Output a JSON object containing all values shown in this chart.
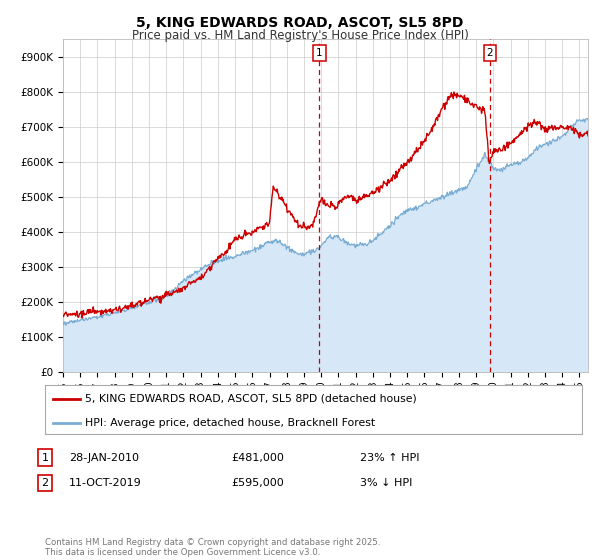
{
  "title": "5, KING EDWARDS ROAD, ASCOT, SL5 8PD",
  "subtitle": "Price paid vs. HM Land Registry's House Price Index (HPI)",
  "ylabel_ticks": [
    "£0",
    "£100K",
    "£200K",
    "£300K",
    "£400K",
    "£500K",
    "£600K",
    "£700K",
    "£800K",
    "£900K"
  ],
  "ytick_values": [
    0,
    100000,
    200000,
    300000,
    400000,
    500000,
    600000,
    700000,
    800000,
    900000
  ],
  "ylim": [
    0,
    950000
  ],
  "xlim_start": 1995.0,
  "xlim_end": 2025.5,
  "line1_color": "#cc0000",
  "line2_color": "#7aadd4",
  "fill_color": "#d6e8f7",
  "vline_color": "#cc0000",
  "marker1_x": 2009.9,
  "marker1_label": "1",
  "marker2_x": 2019.8,
  "marker2_label": "2",
  "legend_line1": "5, KING EDWARDS ROAD, ASCOT, SL5 8PD (detached house)",
  "legend_line2": "HPI: Average price, detached house, Bracknell Forest",
  "table_row1": [
    "1",
    "28-JAN-2010",
    "£481,000",
    "23% ↑ HPI"
  ],
  "table_row2": [
    "2",
    "11-OCT-2019",
    "£595,000",
    "3% ↓ HPI"
  ],
  "footer": "Contains HM Land Registry data © Crown copyright and database right 2025.\nThis data is licensed under the Open Government Licence v3.0.",
  "bg_color": "#ffffff",
  "plot_bg_color": "#ffffff",
  "grid_color": "#cccccc",
  "xtick_years": [
    1995,
    1996,
    1997,
    1998,
    1999,
    2000,
    2001,
    2002,
    2003,
    2004,
    2005,
    2006,
    2007,
    2008,
    2009,
    2010,
    2011,
    2012,
    2013,
    2014,
    2015,
    2016,
    2017,
    2018,
    2019,
    2020,
    2021,
    2022,
    2023,
    2024,
    2025
  ],
  "hpi_key": [
    [
      1995.0,
      140000
    ],
    [
      1996.0,
      148000
    ],
    [
      1997.0,
      158000
    ],
    [
      1998.0,
      170000
    ],
    [
      1999.0,
      185000
    ],
    [
      2000.0,
      200000
    ],
    [
      2001.0,
      218000
    ],
    [
      2002.0,
      260000
    ],
    [
      2003.0,
      295000
    ],
    [
      2004.0,
      320000
    ],
    [
      2005.0,
      330000
    ],
    [
      2006.0,
      348000
    ],
    [
      2007.0,
      370000
    ],
    [
      2007.5,
      375000
    ],
    [
      2008.0,
      358000
    ],
    [
      2008.5,
      340000
    ],
    [
      2009.0,
      335000
    ],
    [
      2009.5,
      345000
    ],
    [
      2010.0,
      360000
    ],
    [
      2010.5,
      390000
    ],
    [
      2011.0,
      385000
    ],
    [
      2011.5,
      370000
    ],
    [
      2012.0,
      360000
    ],
    [
      2012.5,
      365000
    ],
    [
      2013.0,
      375000
    ],
    [
      2013.5,
      395000
    ],
    [
      2014.0,
      420000
    ],
    [
      2014.5,
      445000
    ],
    [
      2015.0,
      460000
    ],
    [
      2015.5,
      470000
    ],
    [
      2016.0,
      480000
    ],
    [
      2016.5,
      490000
    ],
    [
      2017.0,
      500000
    ],
    [
      2017.5,
      510000
    ],
    [
      2018.0,
      520000
    ],
    [
      2018.5,
      530000
    ],
    [
      2019.0,
      580000
    ],
    [
      2019.5,
      620000
    ],
    [
      2019.8,
      600000
    ],
    [
      2020.0,
      580000
    ],
    [
      2020.5,
      580000
    ],
    [
      2021.0,
      590000
    ],
    [
      2021.5,
      600000
    ],
    [
      2022.0,
      610000
    ],
    [
      2022.5,
      640000
    ],
    [
      2023.0,
      650000
    ],
    [
      2023.5,
      660000
    ],
    [
      2024.0,
      670000
    ],
    [
      2024.5,
      700000
    ],
    [
      2025.0,
      720000
    ],
    [
      2025.5,
      720000
    ]
  ],
  "pp_key": [
    [
      1995.0,
      165000
    ],
    [
      1996.0,
      168000
    ],
    [
      1997.0,
      172000
    ],
    [
      1998.0,
      180000
    ],
    [
      1999.0,
      190000
    ],
    [
      2000.0,
      205000
    ],
    [
      2001.0,
      220000
    ],
    [
      2002.0,
      240000
    ],
    [
      2003.0,
      270000
    ],
    [
      2004.0,
      325000
    ],
    [
      2004.5,
      345000
    ],
    [
      2005.0,
      380000
    ],
    [
      2005.5,
      390000
    ],
    [
      2006.0,
      400000
    ],
    [
      2006.5,
      410000
    ],
    [
      2007.0,
      425000
    ],
    [
      2007.2,
      530000
    ],
    [
      2007.5,
      510000
    ],
    [
      2008.0,
      470000
    ],
    [
      2008.5,
      430000
    ],
    [
      2009.0,
      415000
    ],
    [
      2009.5,
      420000
    ],
    [
      2009.9,
      481000
    ],
    [
      2010.0,
      490000
    ],
    [
      2010.5,
      475000
    ],
    [
      2011.0,
      480000
    ],
    [
      2011.5,
      505000
    ],
    [
      2012.0,
      490000
    ],
    [
      2012.5,
      500000
    ],
    [
      2013.0,
      510000
    ],
    [
      2013.5,
      530000
    ],
    [
      2014.0,
      550000
    ],
    [
      2014.5,
      575000
    ],
    [
      2015.0,
      600000
    ],
    [
      2015.5,
      625000
    ],
    [
      2016.0,
      660000
    ],
    [
      2016.5,
      700000
    ],
    [
      2017.0,
      750000
    ],
    [
      2017.5,
      790000
    ],
    [
      2018.0,
      790000
    ],
    [
      2018.3,
      780000
    ],
    [
      2018.8,
      760000
    ],
    [
      2019.0,
      760000
    ],
    [
      2019.5,
      750000
    ],
    [
      2019.75,
      595000
    ],
    [
      2019.85,
      610000
    ],
    [
      2020.0,
      625000
    ],
    [
      2020.5,
      640000
    ],
    [
      2021.0,
      650000
    ],
    [
      2021.5,
      680000
    ],
    [
      2022.0,
      700000
    ],
    [
      2022.5,
      720000
    ],
    [
      2023.0,
      690000
    ],
    [
      2023.5,
      700000
    ],
    [
      2024.0,
      700000
    ],
    [
      2024.5,
      700000
    ],
    [
      2025.0,
      680000
    ],
    [
      2025.5,
      680000
    ]
  ]
}
